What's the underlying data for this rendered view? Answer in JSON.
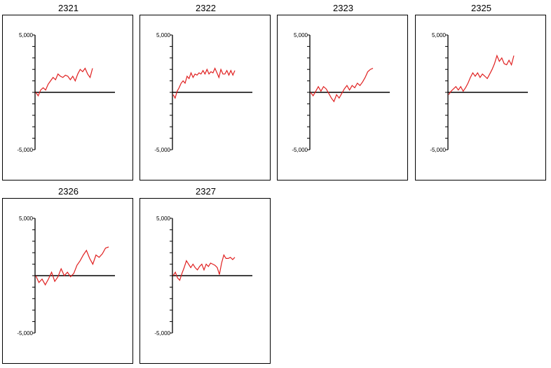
{
  "line_color": "#e02020",
  "axis_color": "#000000",
  "chart_data": [
    {
      "type": "line",
      "title": "2321",
      "ylim": [
        -5000,
        5000
      ],
      "yticks": [
        5000,
        -5000
      ],
      "ytick_labels": [
        "5,000",
        "-5,000"
      ],
      "grid": false,
      "series": [
        {
          "values": [
            0,
            -300,
            200,
            400,
            200,
            700,
            1000,
            1300,
            1100,
            1600,
            1400,
            1300,
            1500,
            1400,
            1100,
            1400,
            1000,
            1600,
            2000,
            1800,
            2100,
            1600,
            1300,
            2100
          ]
        }
      ]
    },
    {
      "type": "line",
      "title": "2322",
      "ylim": [
        -5000,
        5000
      ],
      "yticks": [
        5000,
        -5000
      ],
      "ytick_labels": [
        "5,000",
        "-5,000"
      ],
      "grid": false,
      "series": [
        {
          "values": [
            -200,
            -500,
            100,
            400,
            800,
            1000,
            800,
            1400,
            1200,
            1700,
            1300,
            1600,
            1500,
            1700,
            1600,
            1900,
            1600,
            2000,
            1600,
            1800,
            1700,
            2100,
            1700,
            1300,
            2000,
            1600,
            1600,
            1900,
            1500,
            1900,
            1500,
            1900
          ]
        }
      ]
    },
    {
      "type": "line",
      "title": "2323",
      "ylim": [
        -5000,
        5000
      ],
      "yticks": [
        5000,
        -5000
      ],
      "ytick_labels": [
        "5,000",
        "-5,000"
      ],
      "grid": false,
      "series": [
        {
          "values": [
            0,
            -300,
            100,
            500,
            100,
            500,
            300,
            -100,
            -500,
            -800,
            -200,
            -500,
            -100,
            300,
            600,
            200,
            600,
            400,
            800,
            600,
            900,
            1300,
            1800,
            2000,
            2100
          ]
        }
      ]
    },
    {
      "type": "line",
      "title": "2325",
      "ylim": [
        -5000,
        5000
      ],
      "yticks": [
        5000,
        -5000
      ],
      "ytick_labels": [
        "5,000",
        "-5,000"
      ],
      "grid": false,
      "series": [
        {
          "values": [
            -200,
            100,
            300,
            500,
            200,
            500,
            100,
            400,
            800,
            1300,
            1700,
            1400,
            1700,
            1300,
            1600,
            1400,
            1200,
            1600,
            2000,
            2500,
            3200,
            2700,
            3000,
            2500,
            2400,
            2800,
            2400,
            3200
          ]
        }
      ]
    },
    {
      "type": "line",
      "title": "2326",
      "ylim": [
        -5000,
        5000
      ],
      "yticks": [
        5000,
        -5000
      ],
      "ytick_labels": [
        "5,000",
        "-5,000"
      ],
      "grid": false,
      "series": [
        {
          "values": [
            0,
            -600,
            -300,
            -800,
            -300,
            300,
            -500,
            -100,
            600,
            0,
            300,
            -100,
            200,
            900,
            1300,
            1800,
            2200,
            1500,
            1000,
            1800,
            1600,
            1900,
            2400,
            2500
          ]
        }
      ]
    },
    {
      "type": "line",
      "title": "2327",
      "ylim": [
        -5000,
        5000
      ],
      "yticks": [
        5000,
        -5000
      ],
      "ytick_labels": [
        "5,000",
        "-5,000"
      ],
      "grid": false,
      "series": [
        {
          "values": [
            0,
            300,
            -200,
            -400,
            200,
            700,
            1300,
            1000,
            700,
            1000,
            700,
            500,
            800,
            1000,
            500,
            1000,
            800,
            1100,
            1000,
            900,
            700,
            100,
            1100,
            1800,
            1500,
            1500,
            1600,
            1400,
            1600
          ]
        }
      ]
    }
  ]
}
